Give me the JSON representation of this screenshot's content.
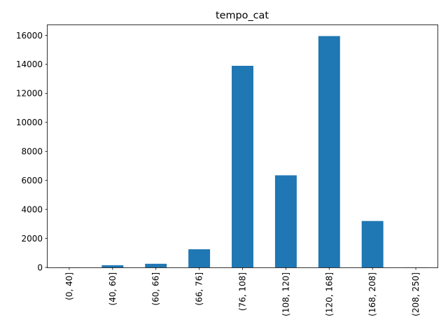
{
  "chart_data": {
    "type": "bar",
    "title": "tempo_cat",
    "xlabel": "",
    "ylabel": "",
    "categories": [
      "(0, 40]",
      "(40, 60]",
      "(60, 66]",
      "(66, 76]",
      "(76, 108]",
      "(108, 120]",
      "(120, 168]",
      "(168, 208]",
      "(208, 250]"
    ],
    "values": [
      5,
      150,
      250,
      1250,
      13900,
      6350,
      15950,
      3200,
      5
    ],
    "ylim": [
      0,
      16700
    ],
    "yticks": [
      0,
      2000,
      4000,
      6000,
      8000,
      10000,
      12000,
      14000,
      16000
    ],
    "grid": false,
    "legend": "none",
    "bar_color": "#1f77b4"
  }
}
